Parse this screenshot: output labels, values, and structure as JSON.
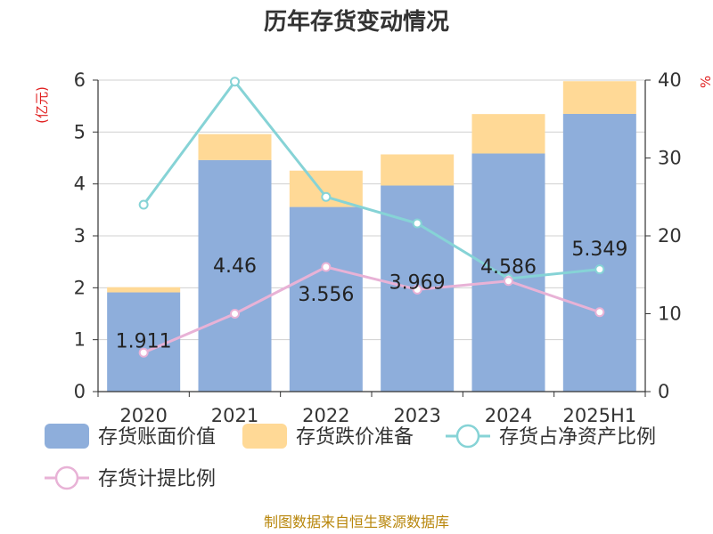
{
  "chart_data": {
    "type": "bar",
    "title": "历年存货变动情况",
    "left_axis_unit": "(亿元)",
    "right_axis_unit": "%",
    "categories": [
      "2020",
      "2021",
      "2022",
      "2023",
      "2024",
      "2025H1"
    ],
    "left_axis": {
      "ylim": [
        0,
        6
      ],
      "ticks": [
        "0",
        "1",
        "2",
        "3",
        "4",
        "5",
        "6"
      ]
    },
    "right_axis": {
      "ylim": [
        0,
        40
      ],
      "ticks": [
        "0",
        "10",
        "20",
        "30",
        "40"
      ]
    },
    "grid": true,
    "stacked": true,
    "series": [
      {
        "name": "存货账面价值",
        "type": "bar",
        "axis": "left",
        "color": "#8eaedb",
        "values": [
          1.911,
          4.46,
          3.556,
          3.969,
          4.586,
          5.349
        ],
        "labels": [
          "1.911",
          "4.46",
          "3.556",
          "3.969",
          "4.586",
          "5.349"
        ]
      },
      {
        "name": "存货跌价准备",
        "type": "bar",
        "axis": "left",
        "color": "#ffd996",
        "values": [
          0.1,
          0.5,
          0.7,
          0.6,
          0.76,
          0.63
        ]
      },
      {
        "name": "存货占净资产比例",
        "type": "line",
        "axis": "right",
        "color": "#86d3d6",
        "values": [
          24.0,
          39.8,
          25.0,
          21.6,
          14.5,
          15.7
        ]
      },
      {
        "name": "存货计提比例",
        "type": "line",
        "axis": "right",
        "color": "#e8b2d6",
        "values": [
          5.0,
          10.0,
          16.0,
          13.1,
          14.2,
          10.2
        ]
      }
    ],
    "legend_position": "bottom",
    "source": "制图数据来自恒生聚源数据库"
  }
}
